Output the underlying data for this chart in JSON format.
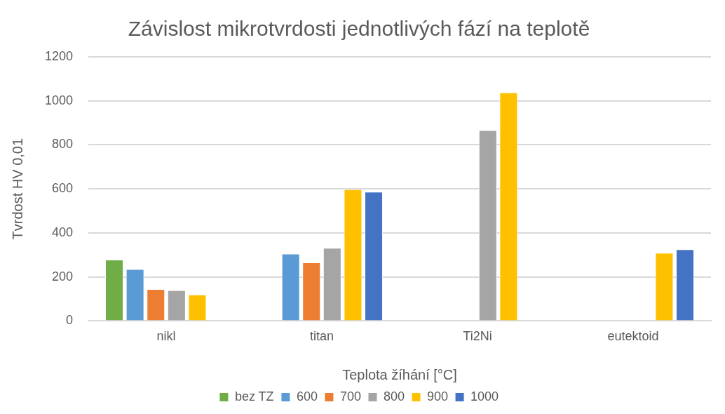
{
  "chart_data": {
    "type": "bar",
    "title": "Závislost mikrotvrdosti jednotlivých fází na teplotě",
    "xlabel": "Teplota žíhání [°C]",
    "ylabel": "Tvrdost HV 0,01",
    "categories": [
      "nikl",
      "titan",
      "Ti2Ni",
      "eutektoid"
    ],
    "series": [
      {
        "name": "bez TZ",
        "color": "#70ad47",
        "values": [
          279,
          null,
          null,
          null
        ]
      },
      {
        "name": "600",
        "color": "#5b9bd5",
        "values": [
          236,
          306,
          null,
          null
        ]
      },
      {
        "name": "700",
        "color": "#ed7d31",
        "values": [
          145,
          266,
          null,
          null
        ]
      },
      {
        "name": "800",
        "color": "#a5a5a5",
        "values": [
          140,
          332,
          867,
          null
        ]
      },
      {
        "name": "900",
        "color": "#ffc000",
        "values": [
          120,
          598,
          1038,
          310
        ]
      },
      {
        "name": "1000",
        "color": "#4472c4",
        "values": [
          null,
          587,
          null,
          326
        ]
      }
    ],
    "ylim": [
      0,
      1200
    ],
    "yticks": [
      0,
      200,
      400,
      600,
      800,
      1000,
      1200
    ],
    "grid": "y",
    "legend": "bottom"
  }
}
